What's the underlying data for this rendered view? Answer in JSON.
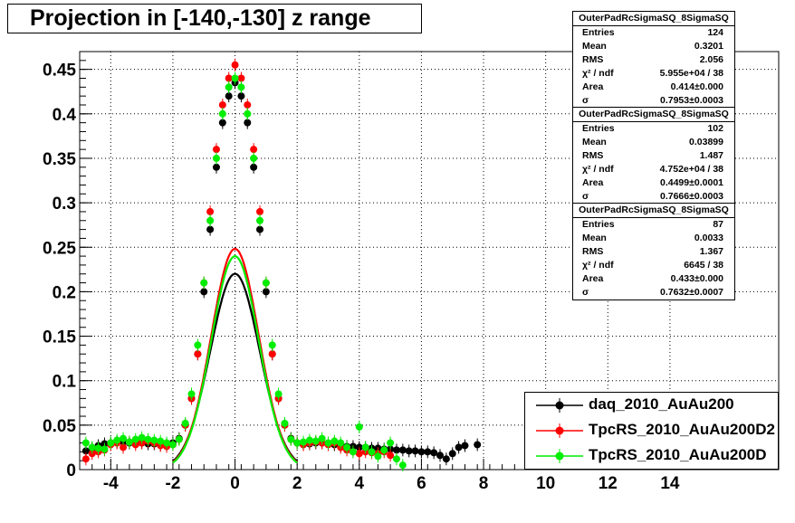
{
  "title": "Projection in [-140,-130] z range",
  "chart_data": {
    "type": "scatter",
    "xlim": [
      -5,
      17.5
    ],
    "ylim": [
      0,
      0.47
    ],
    "x_ticks": [
      -4,
      -2,
      0,
      2,
      4,
      6,
      8,
      10,
      12,
      14
    ],
    "y_ticks": [
      0,
      0.05,
      0.1,
      0.15,
      0.2,
      0.25,
      0.3,
      0.35,
      0.4,
      0.45
    ],
    "y_tick_labels": [
      "0",
      "0.05",
      "0.1",
      "0.15",
      "0.2",
      "0.25",
      "0.3",
      "0.35",
      "0.4",
      "0.45"
    ],
    "grid": true,
    "legend_position": "bottom-right",
    "series": [
      {
        "name": "daq_2010_AuAu200",
        "color": "#000000",
        "fit_sigma": 0.7953,
        "fit_area": 0.414,
        "x": [
          -4.8,
          -4.6,
          -4.4,
          -4.2,
          -4.0,
          -3.8,
          -3.6,
          -3.4,
          -3.2,
          -3.0,
          -2.8,
          -2.6,
          -2.4,
          -2.2,
          -2.0,
          -1.8,
          -1.6,
          -1.4,
          -1.2,
          -1.0,
          -0.8,
          -0.6,
          -0.4,
          -0.2,
          0.0,
          0.2,
          0.4,
          0.6,
          0.8,
          1.0,
          1.2,
          1.4,
          1.6,
          1.8,
          2.0,
          2.2,
          2.4,
          2.6,
          2.8,
          3.0,
          3.2,
          3.4,
          3.6,
          3.8,
          4.0,
          4.2,
          4.4,
          4.6,
          4.8,
          5.0,
          5.2,
          5.4,
          5.6,
          5.8,
          6.0,
          6.2,
          6.4,
          6.6,
          6.8,
          7.0,
          7.2,
          7.4,
          7.8
        ],
        "y": [
          0.021,
          0.024,
          0.027,
          0.029,
          0.03,
          0.031,
          0.031,
          0.03,
          0.031,
          0.03,
          0.029,
          0.029,
          0.028,
          0.028,
          0.03,
          0.035,
          0.05,
          0.08,
          0.13,
          0.2,
          0.27,
          0.34,
          0.39,
          0.42,
          0.435,
          0.42,
          0.39,
          0.34,
          0.27,
          0.2,
          0.13,
          0.08,
          0.05,
          0.035,
          0.03,
          0.028,
          0.029,
          0.03,
          0.03,
          0.029,
          0.028,
          0.027,
          0.026,
          0.026,
          0.025,
          0.025,
          0.024,
          0.024,
          0.023,
          0.023,
          0.022,
          0.022,
          0.021,
          0.021,
          0.02,
          0.02,
          0.019,
          0.016,
          0.012,
          0.018,
          0.025,
          0.027,
          0.028
        ]
      },
      {
        "name": "TpcRS_2010_AuAu200D2",
        "color": "#ff0000",
        "fit_sigma": 0.7666,
        "fit_area": 0.4499,
        "x": [
          -4.8,
          -4.6,
          -4.4,
          -4.2,
          -4.0,
          -3.8,
          -3.6,
          -3.4,
          -3.2,
          -3.0,
          -2.8,
          -2.6,
          -2.4,
          -2.2,
          -2.0,
          -1.8,
          -1.6,
          -1.4,
          -1.2,
          -1.0,
          -0.8,
          -0.6,
          -0.4,
          -0.2,
          0.0,
          0.2,
          0.4,
          0.6,
          0.8,
          1.0,
          1.2,
          1.4,
          1.6,
          1.8,
          2.0,
          2.2,
          2.4,
          2.6,
          2.8,
          3.0,
          3.2,
          3.4,
          3.6,
          3.8,
          4.0,
          4.2,
          4.4,
          4.6,
          4.8,
          5.0
        ],
        "y": [
          0.012,
          0.018,
          0.02,
          0.022,
          0.028,
          0.03,
          0.025,
          0.031,
          0.028,
          0.03,
          0.032,
          0.03,
          0.027,
          0.026,
          0.028,
          0.034,
          0.05,
          0.08,
          0.13,
          0.21,
          0.29,
          0.36,
          0.41,
          0.44,
          0.455,
          0.44,
          0.41,
          0.36,
          0.29,
          0.21,
          0.13,
          0.08,
          0.05,
          0.034,
          0.03,
          0.028,
          0.03,
          0.031,
          0.03,
          0.028,
          0.03,
          0.025,
          0.022,
          0.02,
          0.018,
          0.02,
          0.019,
          0.018,
          0.02,
          0.016
        ]
      },
      {
        "name": "TpcRS_2010_AuAu200D",
        "color": "#00ee00",
        "fit_sigma": 0.7632,
        "fit_area": 0.433,
        "x": [
          -4.8,
          -4.6,
          -4.4,
          -4.2,
          -4.0,
          -3.8,
          -3.6,
          -3.4,
          -3.2,
          -3.0,
          -2.8,
          -2.6,
          -2.4,
          -2.2,
          -2.0,
          -1.8,
          -1.6,
          -1.4,
          -1.2,
          -1.0,
          -0.8,
          -0.6,
          -0.4,
          -0.2,
          0.0,
          0.2,
          0.4,
          0.6,
          0.8,
          1.0,
          1.2,
          1.4,
          1.6,
          1.8,
          2.0,
          2.2,
          2.4,
          2.6,
          2.8,
          3.0,
          3.2,
          3.4,
          3.6,
          3.8,
          4.0,
          4.2,
          4.4,
          4.6,
          4.8,
          5.0,
          5.2,
          5.4
        ],
        "y": [
          0.03,
          0.025,
          0.024,
          0.023,
          0.03,
          0.033,
          0.035,
          0.031,
          0.034,
          0.036,
          0.034,
          0.033,
          0.032,
          0.03,
          0.028,
          0.034,
          0.052,
          0.085,
          0.14,
          0.21,
          0.28,
          0.35,
          0.4,
          0.43,
          0.44,
          0.43,
          0.4,
          0.35,
          0.28,
          0.21,
          0.14,
          0.085,
          0.052,
          0.034,
          0.03,
          0.031,
          0.033,
          0.032,
          0.035,
          0.03,
          0.032,
          0.03,
          0.025,
          0.02,
          0.048,
          0.025,
          0.02,
          0.015,
          0.022,
          0.03,
          0.012,
          0.005
        ]
      }
    ]
  },
  "stats_boxes": [
    {
      "title": "OuterPadRcSigmaSQ_8SigmaSQ",
      "rows": [
        [
          "Entries",
          "124"
        ],
        [
          "Mean",
          "0.3201"
        ],
        [
          "RMS",
          "2.056"
        ],
        [
          "χ² / ndf",
          "5.955e+04 / 38"
        ],
        [
          "Area",
          "0.414±0.000"
        ],
        [
          "σ",
          "0.7953±0.0003"
        ]
      ]
    },
    {
      "title": "OuterPadRcSigmaSQ_8SigmaSQ",
      "rows": [
        [
          "Entries",
          "102"
        ],
        [
          "Mean",
          "0.03899"
        ],
        [
          "RMS",
          "1.487"
        ],
        [
          "χ² / ndf",
          "4.752e+04 / 38"
        ],
        [
          "Area",
          "0.4499±0.0001"
        ],
        [
          "σ",
          "0.7666±0.0003"
        ]
      ]
    },
    {
      "title": "OuterPadRcSigmaSQ_8SigmaSQ",
      "rows": [
        [
          "Entries",
          "87"
        ],
        [
          "Mean",
          "0.0033"
        ],
        [
          "RMS",
          "1.367"
        ],
        [
          "χ² / ndf",
          "6645 / 38"
        ],
        [
          "Area",
          "0.433±0.000"
        ],
        [
          "σ",
          "0.7632±0.0007"
        ]
      ]
    }
  ],
  "legend": {
    "items": [
      {
        "label": "daq_2010_AuAu200",
        "color": "#000000"
      },
      {
        "label": "TpcRS_2010_AuAu200D2",
        "color": "#ff0000"
      },
      {
        "label": "TpcRS_2010_AuAu200D",
        "color": "#00ee00"
      }
    ]
  }
}
